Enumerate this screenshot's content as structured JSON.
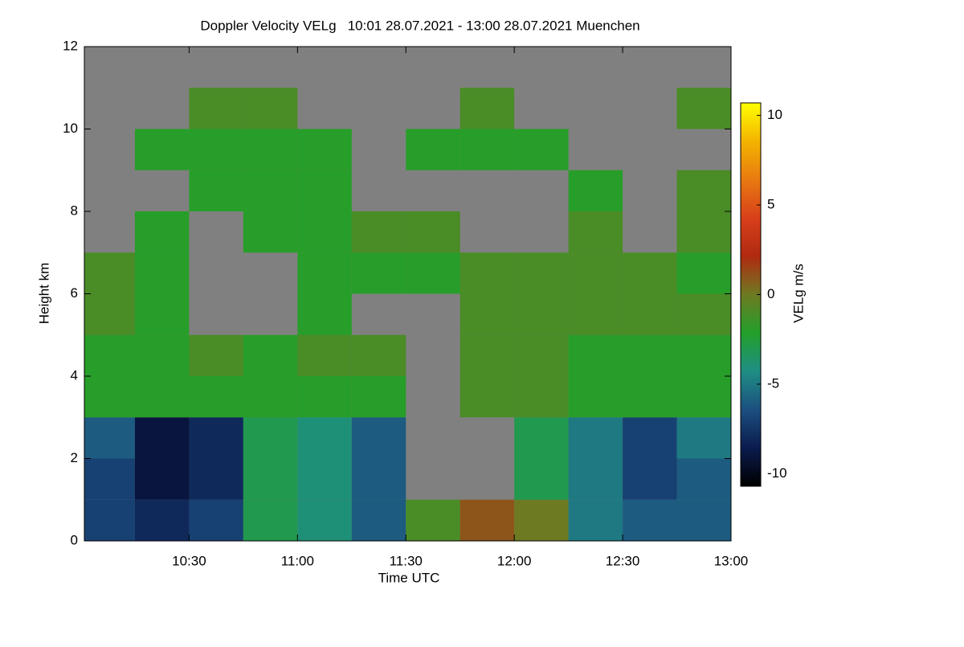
{
  "chart_data": {
    "type": "heatmap",
    "title": "Doppler Velocity VELg   10:01 28.07.2021 - 13:00 28.07.2021 Muenchen",
    "xlabel": "Time UTC",
    "ylabel": "Height km",
    "colorbar_label": "VELg m/s",
    "xlim": [
      10.0167,
      13
    ],
    "ylim": [
      0,
      12
    ],
    "xticks": [
      {
        "value": 10.5,
        "label": "10:30"
      },
      {
        "value": 11,
        "label": "11:00"
      },
      {
        "value": 11.5,
        "label": "11:30"
      },
      {
        "value": 12,
        "label": "12:00"
      },
      {
        "value": 12.5,
        "label": "12:30"
      },
      {
        "value": 13,
        "label": "13:00"
      }
    ],
    "yticks": [
      0,
      2,
      4,
      6,
      8,
      10,
      12
    ],
    "x_bins": [
      10.0167,
      10.25,
      10.5,
      10.75,
      11,
      11.25,
      11.5,
      11.75,
      12,
      12.25,
      12.5,
      12.75,
      13
    ],
    "y_bins": [
      0,
      1,
      2,
      3,
      4,
      5,
      6,
      7,
      8,
      9,
      10,
      11,
      12
    ],
    "z": [
      [
        -7,
        -8,
        -7,
        -3,
        -4,
        -6,
        -1,
        1,
        0,
        -5,
        -6,
        -6
      ],
      [
        -7,
        -9,
        -8,
        -3,
        -4,
        -6,
        null,
        null,
        -3,
        -5,
        -7,
        -6
      ],
      [
        -6,
        -9,
        -8,
        -3,
        -4,
        -6,
        null,
        null,
        -3,
        -5,
        -7,
        -5
      ],
      [
        -2,
        -2,
        -2,
        -2,
        -2,
        -2,
        null,
        -1,
        -1,
        -2,
        -2,
        -2
      ],
      [
        -2,
        -2,
        -1,
        -2,
        -1,
        -1,
        null,
        -1,
        -1,
        -2,
        -2,
        -2
      ],
      [
        -1,
        -2,
        null,
        null,
        -2,
        null,
        null,
        -1,
        -1,
        -1,
        -1,
        -1
      ],
      [
        -1,
        -2,
        null,
        null,
        -2,
        -2,
        -2,
        -1,
        -1,
        -1,
        -1,
        -2
      ],
      [
        null,
        -2,
        null,
        -2,
        -2,
        -1,
        -1,
        null,
        null,
        -1,
        null,
        -1
      ],
      [
        null,
        null,
        -2,
        -2,
        -2,
        null,
        null,
        null,
        null,
        -2,
        null,
        -1
      ],
      [
        null,
        -2,
        -2,
        -2,
        -2,
        null,
        -2,
        -2,
        -2,
        null,
        null,
        null
      ],
      [
        null,
        null,
        -1,
        -1,
        null,
        null,
        null,
        -1,
        null,
        null,
        null,
        -1
      ],
      [
        null,
        null,
        null,
        null,
        null,
        null,
        null,
        null,
        null,
        null,
        null,
        null
      ]
    ],
    "clim": [
      -10.7,
      10.7
    ],
    "cticks": [
      -10,
      -5,
      0,
      5,
      10
    ],
    "colormap": [
      "#000000",
      "#0b1b4e",
      "#1c4f7f",
      "#1f8e84",
      "#22a02a",
      "#6e7a22",
      "#b02a10",
      "#d8401a",
      "#e87a10",
      "#f4b400",
      "#ffff00"
    ],
    "nan_color": "#808080"
  }
}
